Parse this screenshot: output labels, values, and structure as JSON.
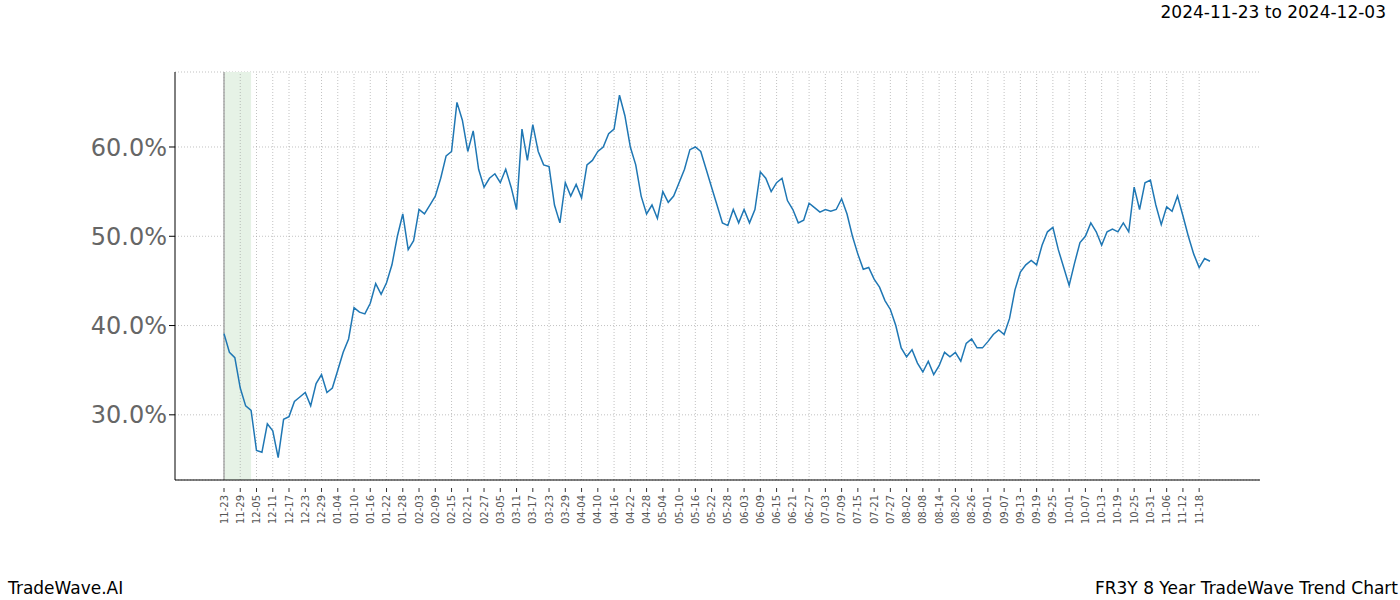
{
  "chart_data": {
    "type": "line",
    "title": "2024-11-23 to 2024-12-03",
    "annotations": [
      "TradeWave.AI",
      "FR3Y 8 Year TradeWave Trend Chart"
    ],
    "highlight": {
      "from": "11-23",
      "to": "12-03"
    },
    "categories": [
      "11-23",
      null,
      null,
      "11-29",
      null,
      null,
      "12-05",
      null,
      null,
      "12-11",
      null,
      null,
      "12-17",
      null,
      null,
      "12-23",
      null,
      null,
      "12-29",
      null,
      null,
      "01-04",
      null,
      null,
      "01-10",
      null,
      null,
      "01-16",
      null,
      null,
      "01-22",
      null,
      null,
      "01-28",
      null,
      null,
      "02-03",
      null,
      null,
      "02-09",
      null,
      null,
      "02-15",
      null,
      null,
      "02-21",
      null,
      null,
      "02-27",
      null,
      null,
      "03-05",
      null,
      null,
      "03-11",
      null,
      null,
      "03-17",
      null,
      null,
      "03-23",
      null,
      null,
      "03-29",
      null,
      null,
      "04-04",
      null,
      null,
      "04-10",
      null,
      null,
      "04-16",
      null,
      null,
      "04-22",
      null,
      null,
      "04-28",
      null,
      null,
      "05-04",
      null,
      null,
      "05-10",
      null,
      null,
      "05-16",
      null,
      null,
      "05-22",
      null,
      null,
      "05-28",
      null,
      null,
      "06-03",
      null,
      null,
      "06-09",
      null,
      null,
      "06-15",
      null,
      null,
      "06-21",
      null,
      null,
      "06-27",
      null,
      null,
      "07-03",
      null,
      null,
      "07-09",
      null,
      null,
      "07-15",
      null,
      null,
      "07-21",
      null,
      null,
      "07-27",
      null,
      null,
      "08-02",
      null,
      null,
      "08-08",
      null,
      null,
      "08-14",
      null,
      null,
      "08-20",
      null,
      null,
      "08-26",
      null,
      null,
      "09-01",
      null,
      null,
      "09-07",
      null,
      null,
      "09-13",
      null,
      null,
      "09-19",
      null,
      null,
      "09-25",
      null,
      null,
      "10-01",
      null,
      null,
      "10-07",
      null,
      null,
      "10-13",
      null,
      null,
      "10-19",
      null,
      null,
      "10-25",
      null,
      null,
      "10-31",
      null,
      null,
      "11-06",
      null,
      null,
      "11-12",
      null,
      null,
      "11-18",
      null,
      null
    ],
    "values": [
      39.1,
      37.0,
      36.4,
      33.0,
      31.0,
      30.5,
      26.0,
      25.8,
      29.0,
      28.2,
      25.2,
      29.5,
      29.8,
      31.5,
      32.0,
      32.5,
      31.0,
      33.5,
      34.5,
      32.5,
      33.0,
      35.0,
      37.0,
      38.5,
      42.0,
      41.5,
      41.3,
      42.5,
      44.7,
      43.5,
      44.8,
      46.8,
      50.0,
      52.5,
      48.5,
      49.5,
      53.0,
      52.5,
      53.5,
      54.5,
      56.5,
      59.0,
      59.5,
      65.0,
      63.0,
      59.5,
      61.8,
      57.5,
      55.5,
      56.5,
      57.0,
      56.0,
      57.5,
      55.5,
      53.0,
      62.0,
      58.5,
      62.5,
      59.5,
      58.0,
      57.8,
      53.5,
      51.5,
      56.0,
      54.5,
      55.8,
      54.3,
      58.0,
      58.5,
      59.5,
      60.0,
      61.5,
      62.0,
      65.8,
      63.5,
      60.0,
      58.0,
      54.5,
      52.5,
      53.5,
      52.0,
      55.0,
      53.8,
      54.5,
      56.0,
      57.5,
      59.7,
      60.0,
      59.5,
      57.5,
      55.5,
      53.5,
      51.5,
      51.2,
      53.0,
      51.5,
      53.0,
      51.5,
      53.0,
      57.2,
      56.5,
      55.0,
      56.0,
      56.5,
      54.0,
      53.0,
      51.5,
      51.8,
      53.7,
      53.2,
      52.7,
      53.0,
      52.8,
      53.0,
      54.2,
      52.5,
      50.0,
      48.0,
      46.3,
      46.5,
      45.2,
      44.3,
      42.8,
      41.8,
      40.0,
      37.5,
      36.5,
      37.3,
      35.8,
      34.8,
      36.0,
      34.5,
      35.5,
      37.0,
      36.5,
      37.0,
      36.0,
      38.0,
      38.5,
      37.5,
      37.5,
      38.2,
      39.0,
      39.5,
      39.0,
      40.8,
      44.0,
      46.0,
      46.8,
      47.3,
      46.8,
      49.0,
      50.5,
      51.0,
      48.5,
      46.5,
      44.5,
      47.0,
      49.3,
      50.0,
      51.5,
      50.5,
      49.0,
      50.5,
      50.8,
      50.5,
      51.5,
      50.5,
      55.5,
      53.0,
      56.0,
      56.3,
      53.5,
      51.3,
      53.3,
      52.8,
      54.5,
      52.3,
      50.0,
      48.0,
      46.5,
      47.5,
      47.2
    ],
    "color": "#1f77b4",
    "ylim": [
      22.7,
      68.4
    ],
    "yticks": [
      {
        "value": 30,
        "label": "30.0%"
      },
      {
        "value": 40,
        "label": "40.0%"
      },
      {
        "value": 50,
        "label": "50.0%"
      },
      {
        "value": 60,
        "label": "60.0%"
      }
    ],
    "grid": true
  }
}
